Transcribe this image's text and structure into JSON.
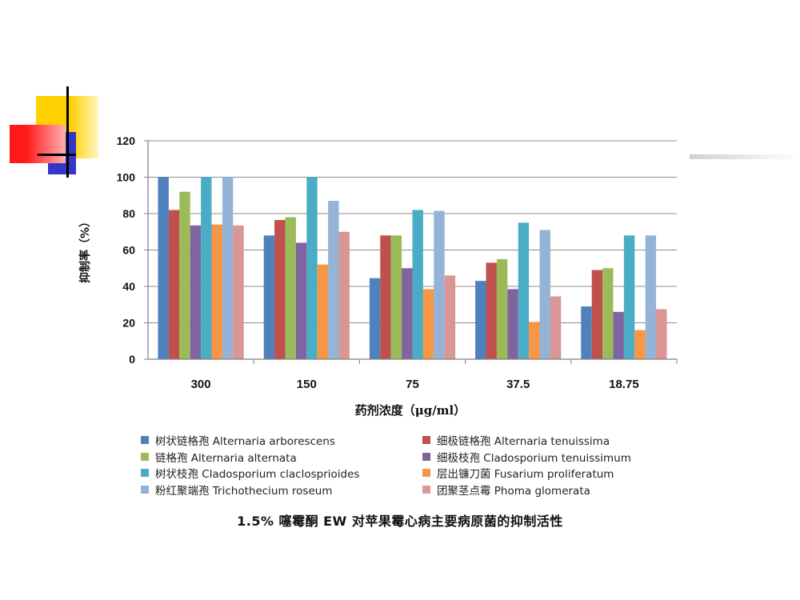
{
  "chart_data": {
    "type": "bar",
    "title": "",
    "xlabel": "药剂浓度（μg/ml）",
    "ylabel": "抑制率（%）",
    "ylim": [
      0,
      120
    ],
    "yticks": [
      "0",
      "20",
      "40",
      "60",
      "80",
      "100",
      "120"
    ],
    "grid": true,
    "legend_position": "bottom",
    "categories": [
      "300",
      "150",
      "75",
      "37.5",
      "18.75"
    ],
    "series": [
      {
        "name": "树状链格孢 Alternaria arborescens",
        "color": "#4F81BD",
        "values": [
          100,
          68,
          44.5,
          43,
          29
        ]
      },
      {
        "name": "细极链格孢 Alternaria tenuissima",
        "color": "#C0504D",
        "values": [
          82,
          76.5,
          68,
          53,
          49
        ]
      },
      {
        "name": "链格孢 Alternaria alternata",
        "color": "#9BBB59",
        "values": [
          92,
          78,
          68,
          55,
          50
        ]
      },
      {
        "name": "细极枝孢 Cladosporium tenuissimum",
        "color": "#8064A2",
        "values": [
          73.5,
          64,
          50,
          38.5,
          26
        ]
      },
      {
        "name": "树状枝孢 Cladosporium claclosprioides",
        "color": "#4BACC6",
        "values": [
          100,
          100,
          82,
          75,
          68
        ]
      },
      {
        "name": "层出镰刀菌 Fusarium proliferatum",
        "color": "#F79646",
        "values": [
          74,
          52,
          38.5,
          20.5,
          16
        ]
      },
      {
        "name": "粉红聚端孢 Trichothecium roseum",
        "color": "#95B3D7",
        "values": [
          100,
          87,
          81.5,
          71,
          68
        ]
      },
      {
        "name": "团聚茎点霉 Phoma glomerata",
        "color": "#D99694",
        "values": [
          73.5,
          70,
          46,
          34.5,
          27.5
        ]
      }
    ]
  },
  "caption": "1.5% 噻霉酮 EW 对苹果霉心病主要病原菌的抑制活性",
  "decoration": {
    "yellow": "#FFD000",
    "red": "#FF2020",
    "blue": "#3030C0",
    "line": "#000000"
  }
}
